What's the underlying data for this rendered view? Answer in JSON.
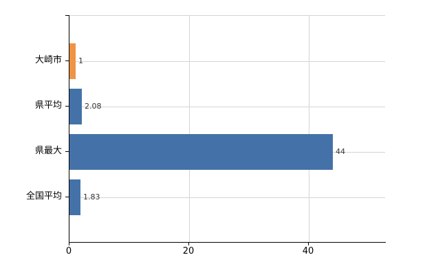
{
  "chart_data": {
    "type": "bar",
    "orientation": "horizontal",
    "title": "",
    "legend": false,
    "grid": true,
    "categories": [
      "大崎市",
      "県平均",
      "県最大",
      "全国平均"
    ],
    "values": [
      1,
      2.08,
      44,
      1.83
    ],
    "value_labels": [
      "1",
      "2.08",
      "44",
      "1.83"
    ],
    "x_ticks": [
      "0",
      "20",
      "40"
    ],
    "x_tick_values": [
      0,
      20,
      40
    ],
    "xlim": [
      0,
      52.75
    ],
    "colors": {
      "bar_colors": [
        "#EF9445",
        "#4472A8",
        "#4472A8",
        "#4472A8"
      ],
      "highlight_bar": "#EF9445",
      "default_bar": "#4472A8",
      "gridline": "#D4D4D4",
      "axis": "#000000",
      "value_label": "#333333",
      "category_label": "#000000",
      "tick_label": "#000000",
      "background": "#FFFFFF"
    }
  }
}
